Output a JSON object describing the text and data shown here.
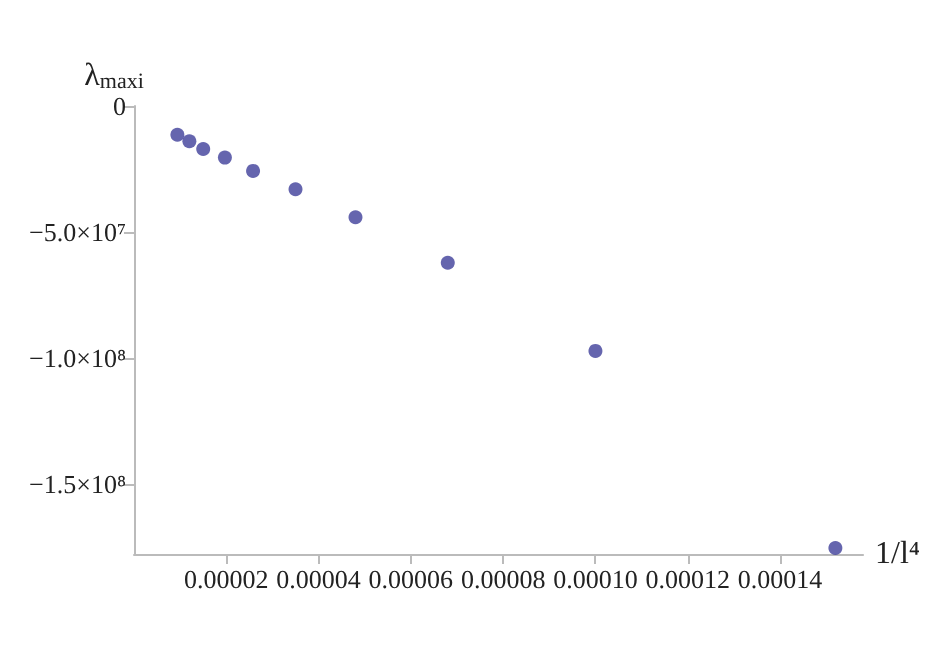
{
  "chart_data": {
    "type": "scatter",
    "xlabel": "1/l⁴",
    "ylabel": "λ$_{maxi}$",
    "x": [
      9.4e-06,
      1.2e-05,
      1.5e-05,
      1.97e-05,
      2.58e-05,
      3.5e-05,
      4.8e-05,
      6.8e-05,
      0.0001,
      0.000152
    ],
    "values": [
      -11400000,
      -14000000,
      -17100000,
      -20500000,
      -25800000,
      -33100000,
      -44200000,
      -62300000,
      -97300000,
      -175600000
    ],
    "color": "#3f3f9a",
    "marker": "circle",
    "grid": false,
    "xlim": [
      0,
      0.000158
    ],
    "xticks": [
      {
        "value": 2e-05,
        "label": "0.00002"
      },
      {
        "value": 4e-05,
        "label": "0.00004"
      },
      {
        "value": 6e-05,
        "label": "0.00006"
      },
      {
        "value": 8e-05,
        "label": "0.00008"
      },
      {
        "value": 0.0001,
        "label": "0.00010"
      },
      {
        "value": 0.00012,
        "label": "0.00012"
      },
      {
        "value": 0.00014,
        "label": "0.00014"
      }
    ],
    "ylim": [
      -178000000,
      0
    ],
    "yticks": [
      {
        "value": 0,
        "label": "0"
      },
      {
        "value": -50000000,
        "label": "−5.0×10⁷"
      },
      {
        "value": -100000000,
        "label": "−1.0×10⁸"
      },
      {
        "value": -150000000,
        "label": "−1.5×10⁸"
      }
    ]
  }
}
